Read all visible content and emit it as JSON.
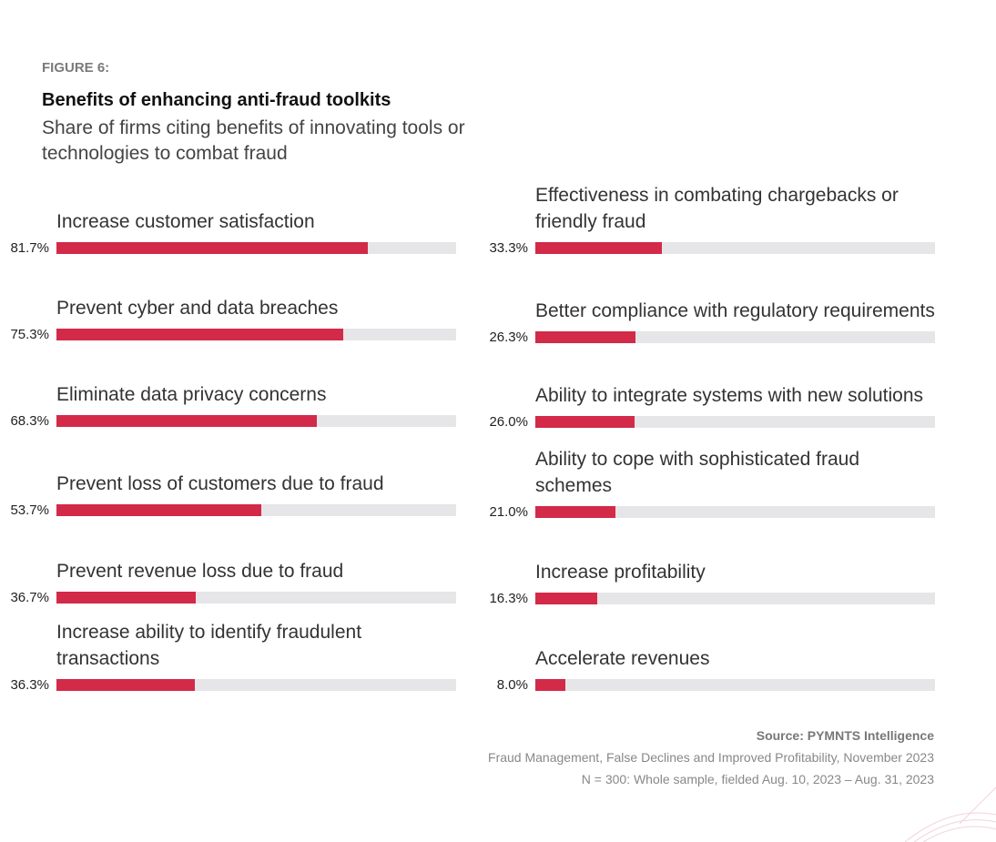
{
  "figure_label": "FIGURE 6:",
  "chart_data": {
    "type": "bar",
    "orientation": "horizontal",
    "title": "Benefits of enhancing anti-fraud toolkits",
    "subtitle": "Share of firms citing benefits of innovating tools or technologies to combat fraud",
    "value_format": "percent",
    "colors": {
      "fill": "#d22a48",
      "track": "#e6e6e8"
    },
    "items": [
      {
        "label": "Increase customer satisfaction",
        "value": 81.7,
        "display": "81.7%"
      },
      {
        "label": "Prevent cyber and data breaches",
        "value": 75.3,
        "display": "75.3%"
      },
      {
        "label": "Eliminate data privacy concerns",
        "value": 68.3,
        "display": "68.3%"
      },
      {
        "label": "Prevent loss of customers due to fraud",
        "value": 53.7,
        "display": "53.7%"
      },
      {
        "label": "Prevent revenue loss due to fraud",
        "value": 36.7,
        "display": "36.7%"
      },
      {
        "label": "Increase ability to identify fraudulent transactions",
        "value": 36.3,
        "display": "36.3%"
      },
      {
        "label": "Effectiveness in combating chargebacks or friendly fraud",
        "value": 33.3,
        "display": "33.3%"
      },
      {
        "label": "Better compliance with regulatory requirements",
        "value": 26.3,
        "display": "26.3%"
      },
      {
        "label": "Ability to integrate systems with new solutions",
        "value": 26.0,
        "display": "26.0%"
      },
      {
        "label": "Ability to cope with sophisticated fraud schemes",
        "value": 21.0,
        "display": "21.0%"
      },
      {
        "label": "Increase profitability",
        "value": 16.3,
        "display": "16.3%"
      },
      {
        "label": "Accelerate revenues",
        "value": 8.0,
        "display": "8.0%"
      }
    ]
  },
  "footer": {
    "source": "Source: PYMNTS Intelligence",
    "report": "Fraud Management, False Declines and Improved Profitability, November 2023",
    "sample": "N = 300: Whole sample, fielded Aug. 10, 2023 – Aug. 31, 2023"
  }
}
